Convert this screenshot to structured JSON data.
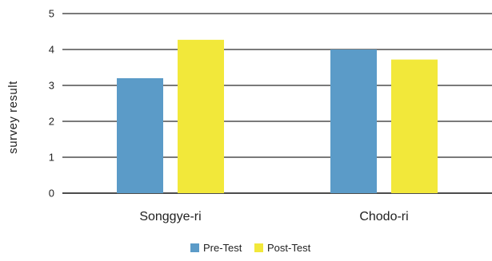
{
  "chart_data": {
    "type": "bar",
    "categories": [
      "Songgye-ri",
      "Chodo-ri"
    ],
    "series": [
      {
        "name": "Pre-Test",
        "values": [
          3.2,
          4.0
        ],
        "color": "#5b9bc8"
      },
      {
        "name": "Post-Test",
        "values": [
          4.27,
          3.72
        ],
        "color": "#f2e83a"
      }
    ],
    "title": "",
    "xlabel": "",
    "ylabel": "survey result",
    "ylim": [
      0,
      5
    ],
    "yticks": [
      0,
      1,
      2,
      3,
      4,
      5
    ],
    "grid": true,
    "legend_position": "bottom-center"
  }
}
